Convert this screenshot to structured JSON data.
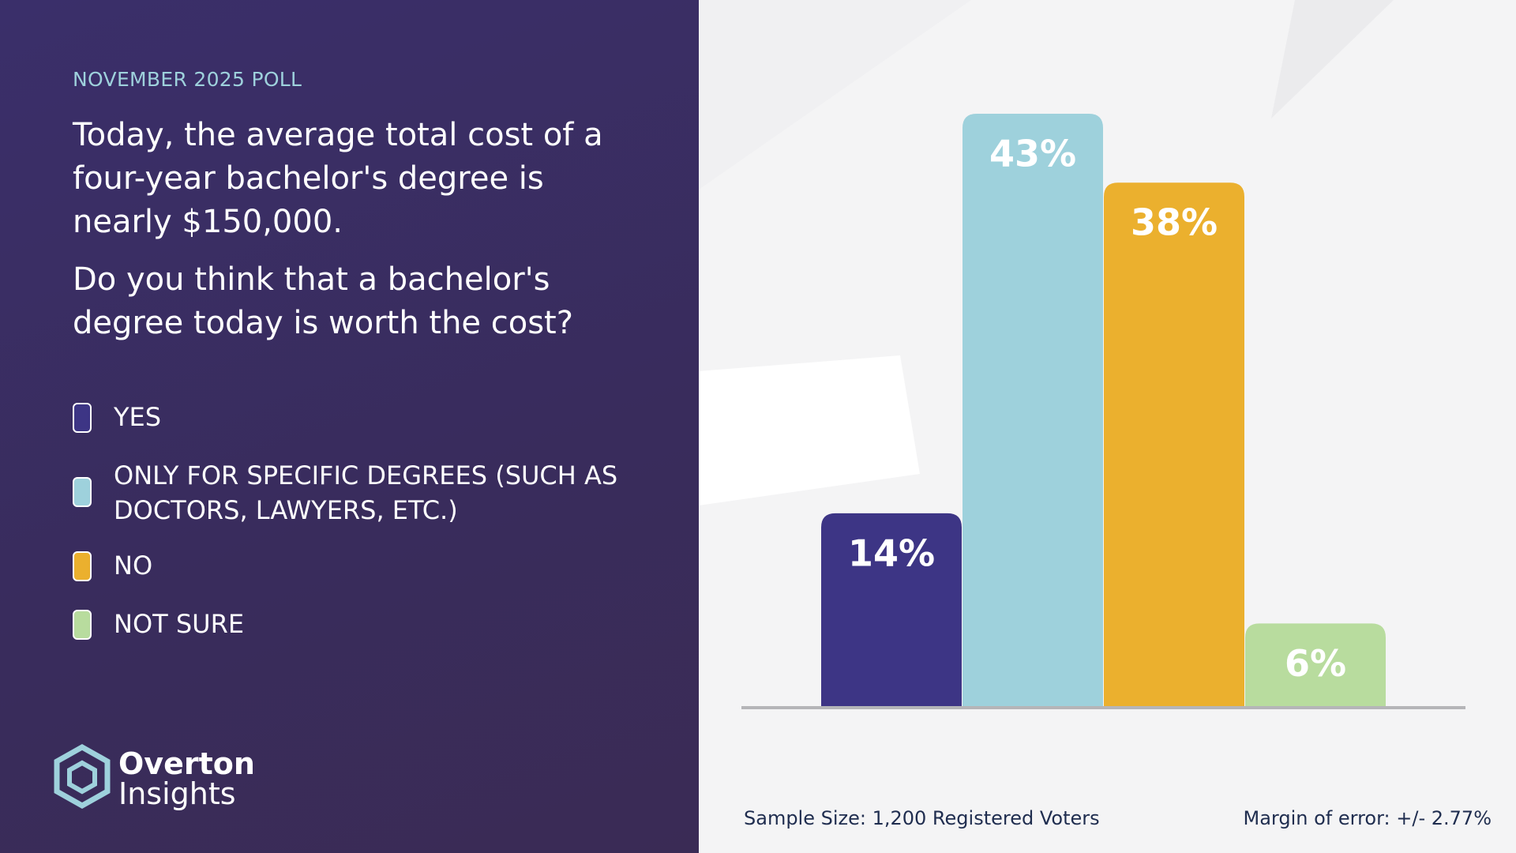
{
  "chart_data": {
    "type": "bar",
    "kicker": "NOVEMBER 2025 POLL",
    "title": "Today, the average total cost of a four-year bachelor's degree is nearly $150,000.",
    "subtitle": "Do you think that a bachelor's degree today is worth the cost?",
    "categories": [
      "YES",
      "ONLY FOR SPECIFIC DEGREES (SUCH AS DOCTORS, LAWYERS, ETC.)",
      "NO",
      "NOT SURE"
    ],
    "values": [
      14,
      43,
      38,
      6
    ],
    "value_labels": [
      "14%",
      "43%",
      "38%",
      "6%"
    ],
    "colors": [
      "#3d3585",
      "#9ed1dc",
      "#ebb02e",
      "#b8dc9e"
    ],
    "annotations": [
      "Sample Size: 1,200 Registered Voters",
      "Margin of error: +/- 2.77%"
    ]
  },
  "logo": {
    "line1": "Overton",
    "line2": "Insights"
  }
}
